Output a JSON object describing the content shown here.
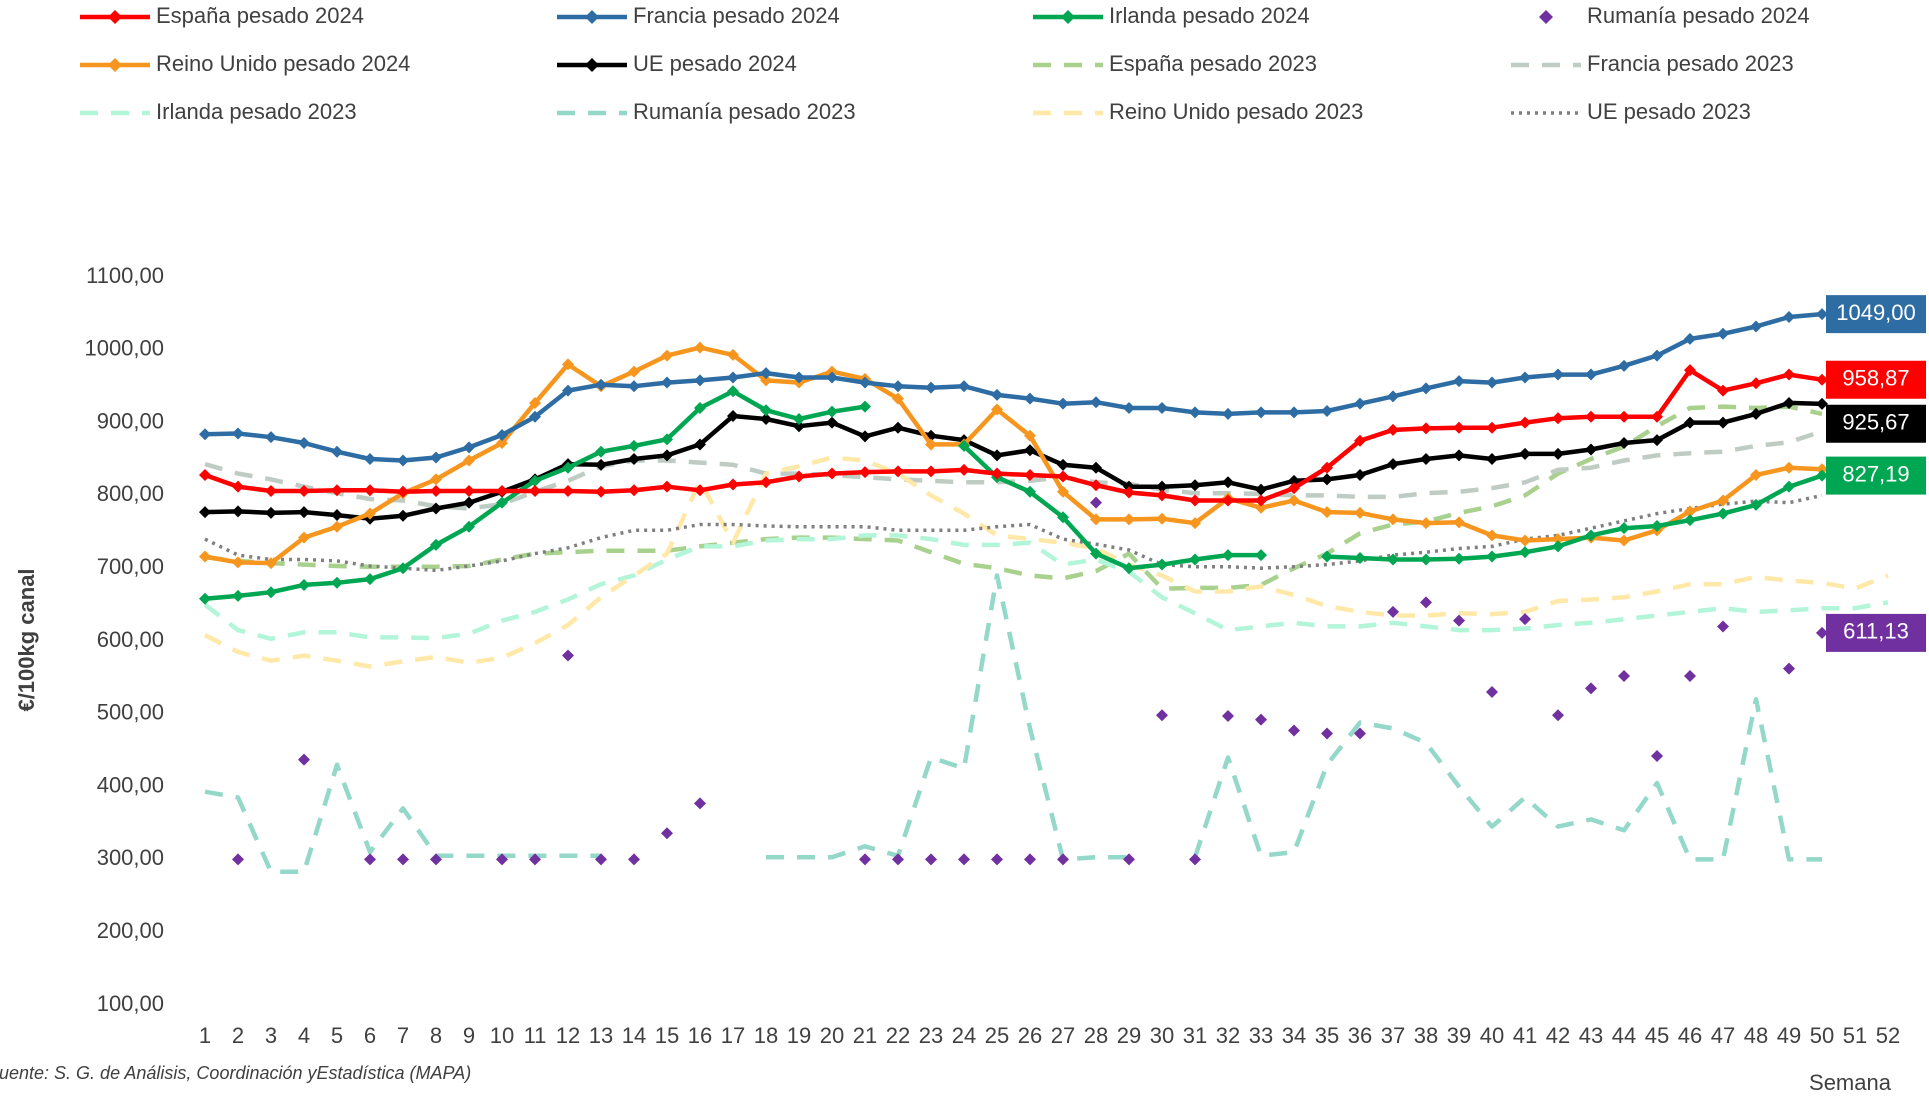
{
  "chart_data": {
    "type": "line",
    "y_label": "€/100kg canal",
    "x_label": "Semana",
    "source": "Fuente: S. G. de  Análisis, Coordinación yEstadística (MAPA)",
    "categories": [
      "1",
      "2",
      "3",
      "4",
      "5",
      "6",
      "7",
      "8",
      "9",
      "10",
      "11",
      "12",
      "13",
      "14",
      "15",
      "16",
      "17",
      "18",
      "19",
      "20",
      "21",
      "22",
      "23",
      "24",
      "25",
      "26",
      "27",
      "28",
      "29",
      "30",
      "31",
      "32",
      "33",
      "34",
      "35",
      "36",
      "37",
      "38",
      "39",
      "40",
      "41",
      "42",
      "43",
      "44",
      "45",
      "46",
      "47",
      "48",
      "49",
      "50",
      "51",
      "52"
    ],
    "ylim": [
      100,
      1100
    ],
    "yticks": [
      {
        "value": 100,
        "label": "100,00"
      },
      {
        "value": 200,
        "label": "200,00"
      },
      {
        "value": 300,
        "label": "300,00"
      },
      {
        "value": 400,
        "label": "400,00"
      },
      {
        "value": 500,
        "label": "500,00"
      },
      {
        "value": 600,
        "label": "600,00"
      },
      {
        "value": 700,
        "label": "700,00"
      },
      {
        "value": 800,
        "label": "800,00"
      },
      {
        "value": 900,
        "label": "900,00"
      },
      {
        "value": 1000,
        "label": "1000,00"
      },
      {
        "value": 1100,
        "label": "1100,00"
      }
    ],
    "grid": false,
    "legend": "top",
    "series": [
      {
        "name": "España pesado 2024",
        "color": "#ff0000",
        "line_style": "solid",
        "marker": true,
        "values": [
          828,
          812,
          806,
          806,
          807,
          807,
          805,
          806,
          806,
          806,
          806,
          806,
          805,
          807,
          812,
          807,
          815,
          818,
          826,
          830,
          832,
          833,
          833,
          835,
          830,
          828,
          826,
          814,
          804,
          800,
          793,
          793,
          793,
          810,
          838,
          875,
          890,
          892,
          893,
          893,
          900,
          906,
          908,
          908,
          908,
          972,
          944,
          954,
          966,
          958.87,
          null,
          null
        ],
        "value_labels": [
          null,
          null,
          null,
          null,
          null,
          null,
          null,
          null,
          null,
          null,
          null,
          null,
          null,
          null,
          null,
          null,
          null,
          null,
          null,
          null,
          null,
          null,
          null,
          null,
          null,
          null,
          null,
          null,
          null,
          null,
          null,
          null,
          null,
          null,
          null,
          null,
          null,
          null,
          null,
          null,
          null,
          null,
          null,
          null,
          null,
          null,
          null,
          null,
          null,
          "958,87",
          null,
          null
        ]
      },
      {
        "name": "Francia pesado 2024",
        "color": "#2e6ca4",
        "line_style": "solid",
        "marker": true,
        "values": [
          884,
          885,
          880,
          872,
          860,
          850,
          848,
          852,
          866,
          883,
          908,
          944,
          952,
          950,
          955,
          958,
          962,
          968,
          962,
          962,
          955,
          950,
          948,
          950,
          938,
          933,
          926,
          928,
          920,
          920,
          914,
          912,
          914,
          914,
          916,
          926,
          936,
          947,
          957,
          955,
          962,
          966,
          966,
          978,
          992,
          1015,
          1022,
          1032,
          1045,
          1049,
          null,
          null
        ],
        "value_labels": [
          null,
          null,
          null,
          null,
          null,
          null,
          null,
          null,
          null,
          null,
          null,
          null,
          null,
          null,
          null,
          null,
          null,
          null,
          null,
          null,
          null,
          null,
          null,
          null,
          null,
          null,
          null,
          null,
          null,
          null,
          null,
          null,
          null,
          null,
          null,
          null,
          null,
          null,
          null,
          null,
          null,
          null,
          null,
          null,
          null,
          null,
          null,
          null,
          null,
          "1049,00",
          null,
          null
        ]
      },
      {
        "name": "Irlanda pesado 2024",
        "color": "#00a651",
        "line_style": "solid",
        "marker": true,
        "values": [
          658,
          662,
          667,
          677,
          680,
          685,
          700,
          732,
          757,
          790,
          820,
          838,
          860,
          868,
          877,
          920,
          943,
          917,
          905,
          915,
          922,
          null,
          null,
          868,
          825,
          805,
          770,
          720,
          700,
          705,
          712,
          718,
          718,
          null,
          716,
          714,
          712,
          712,
          713,
          716,
          722,
          730,
          745,
          755,
          758,
          766,
          775,
          787,
          812,
          827.19,
          null,
          null
        ],
        "value_labels": [
          null,
          null,
          null,
          null,
          null,
          null,
          null,
          null,
          null,
          null,
          null,
          null,
          null,
          null,
          null,
          null,
          null,
          null,
          null,
          null,
          null,
          null,
          null,
          null,
          null,
          null,
          null,
          null,
          null,
          null,
          null,
          null,
          null,
          null,
          null,
          null,
          null,
          null,
          null,
          null,
          null,
          null,
          null,
          null,
          null,
          null,
          null,
          null,
          null,
          "827,19",
          null,
          null
        ]
      },
      {
        "name": "Rumanía pesado 2024",
        "color": "#7030a0",
        "line_style": "none",
        "marker": true,
        "values": [
          null,
          300,
          null,
          437,
          null,
          300,
          300,
          300,
          null,
          300,
          300,
          580,
          300,
          300,
          336,
          377,
          null,
          null,
          null,
          null,
          300,
          300,
          300,
          300,
          300,
          300,
          300,
          790,
          300,
          498,
          300,
          497,
          492,
          477,
          473,
          473,
          640,
          653,
          628,
          530,
          630,
          498,
          535,
          552,
          442,
          552,
          620,
          null,
          562,
          611.13,
          null,
          null
        ],
        "value_labels": [
          null,
          null,
          null,
          null,
          null,
          null,
          null,
          null,
          null,
          null,
          null,
          null,
          null,
          null,
          null,
          null,
          null,
          null,
          null,
          null,
          null,
          null,
          null,
          null,
          null,
          null,
          null,
          null,
          null,
          null,
          null,
          null,
          null,
          null,
          null,
          null,
          null,
          null,
          null,
          null,
          null,
          null,
          null,
          null,
          null,
          null,
          null,
          null,
          null,
          "611,13",
          null,
          null
        ]
      },
      {
        "name": "Reino Unido pesado 2024",
        "color": "#f7961e",
        "line_style": "solid",
        "marker": true,
        "values": [
          716,
          708,
          707,
          742,
          757,
          775,
          803,
          822,
          848,
          872,
          927,
          980,
          950,
          970,
          992,
          1003,
          993,
          958,
          955,
          970,
          960,
          933,
          870,
          870,
          918,
          882,
          805,
          767,
          767,
          768,
          762,
          796,
          783,
          793,
          777,
          776,
          767,
          762,
          763,
          745,
          738,
          740,
          742,
          738,
          752,
          778,
          793,
          828,
          838,
          836,
          null,
          null
        ]
      },
      {
        "name": "UE pesado 2024",
        "color": "#000000",
        "line_style": "solid",
        "marker": true,
        "values": [
          777,
          778,
          776,
          777,
          773,
          768,
          772,
          782,
          790,
          805,
          822,
          843,
          842,
          850,
          855,
          870,
          909,
          905,
          895,
          900,
          881,
          893,
          882,
          876,
          855,
          862,
          842,
          838,
          812,
          812,
          814,
          818,
          808,
          820,
          822,
          828,
          843,
          850,
          855,
          850,
          857,
          857,
          863,
          872,
          876,
          900,
          900,
          912,
          927,
          925.67,
          null,
          null
        ],
        "value_labels": [
          null,
          null,
          null,
          null,
          null,
          null,
          null,
          null,
          null,
          null,
          null,
          null,
          null,
          null,
          null,
          null,
          null,
          null,
          null,
          null,
          null,
          null,
          null,
          null,
          null,
          null,
          null,
          null,
          null,
          null,
          null,
          null,
          null,
          null,
          null,
          null,
          null,
          null,
          null,
          null,
          null,
          null,
          null,
          null,
          null,
          null,
          null,
          null,
          null,
          "925,67",
          null,
          null
        ]
      },
      {
        "name": "España pesado 2023",
        "color": "#a9d18e",
        "line_style": "dashed",
        "marker": false,
        "values": [
          715,
          710,
          707,
          705,
          703,
          702,
          702,
          702,
          703,
          712,
          720,
          722,
          724,
          724,
          724,
          730,
          735,
          740,
          742,
          742,
          740,
          738,
          722,
          706,
          700,
          690,
          686,
          696,
          720,
          672,
          673,
          673,
          677,
          700,
          720,
          748,
          760,
          764,
          776,
          785,
          800,
          830,
          850,
          867,
          895,
          920,
          922,
          920,
          922,
          912,
          null,
          null
        ]
      },
      {
        "name": "Francia pesado 2023",
        "color": "#bfccc4",
        "line_style": "dashed",
        "marker": false,
        "values": [
          843,
          830,
          822,
          812,
          803,
          795,
          793,
          785,
          782,
          788,
          805,
          820,
          840,
          848,
          848,
          845,
          842,
          830,
          830,
          828,
          825,
          822,
          820,
          818,
          818,
          820,
          825,
          818,
          816,
          808,
          803,
          803,
          802,
          800,
          800,
          798,
          798,
          803,
          805,
          810,
          818,
          835,
          838,
          848,
          855,
          858,
          860,
          868,
          873,
          888,
          null,
          null
        ]
      },
      {
        "name": "Irlanda pesado 2023",
        "color": "#b3f5d9",
        "line_style": "dashed",
        "marker": false,
        "values": [
          650,
          615,
          603,
          612,
          612,
          605,
          605,
          604,
          610,
          628,
          640,
          657,
          678,
          690,
          712,
          730,
          730,
          738,
          740,
          740,
          745,
          745,
          740,
          732,
          732,
          735,
          705,
          712,
          695,
          660,
          638,
          615,
          620,
          625,
          620,
          620,
          625,
          620,
          615,
          615,
          617,
          622,
          625,
          630,
          635,
          640,
          645,
          640,
          642,
          645,
          645,
          653
        ]
      },
      {
        "name": "Rumanía pesado 2023",
        "color": "#93d8c8",
        "line_style": "dashed",
        "marker": false,
        "values": [
          393,
          385,
          283,
          283,
          430,
          310,
          370,
          305,
          305,
          305,
          305,
          305,
          305,
          null,
          null,
          null,
          null,
          303,
          303,
          303,
          318,
          305,
          440,
          425,
          690,
          480,
          300,
          303,
          303,
          null,
          303,
          440,
          305,
          310,
          430,
          488,
          480,
          460,
          400,
          345,
          385,
          345,
          355,
          340,
          405,
          300,
          300,
          520,
          300,
          300,
          null,
          null
        ]
      },
      {
        "name": "Reino Unido pesado 2023",
        "color": "#ffe8a8",
        "line_style": "dashed",
        "marker": false,
        "values": [
          608,
          585,
          573,
          580,
          573,
          565,
          572,
          578,
          570,
          577,
          597,
          622,
          660,
          690,
          720,
          820,
          735,
          830,
          840,
          852,
          848,
          830,
          800,
          775,
          745,
          740,
          735,
          727,
          705,
          690,
          668,
          668,
          675,
          663,
          648,
          640,
          635,
          635,
          638,
          637,
          640,
          655,
          657,
          660,
          668,
          678,
          678,
          688,
          683,
          680,
          672,
          690
        ]
      },
      {
        "name": "UE pesado 2023",
        "color": "#7f7f7f",
        "line_style": "dotted",
        "marker": false,
        "values": [
          740,
          718,
          712,
          712,
          710,
          703,
          700,
          697,
          703,
          710,
          720,
          728,
          742,
          752,
          752,
          760,
          760,
          758,
          757,
          757,
          757,
          752,
          752,
          752,
          757,
          760,
          740,
          733,
          725,
          705,
          702,
          702,
          700,
          702,
          705,
          710,
          718,
          722,
          727,
          730,
          740,
          745,
          755,
          765,
          775,
          782,
          788,
          792,
          790,
          800,
          null,
          null
        ]
      }
    ]
  }
}
